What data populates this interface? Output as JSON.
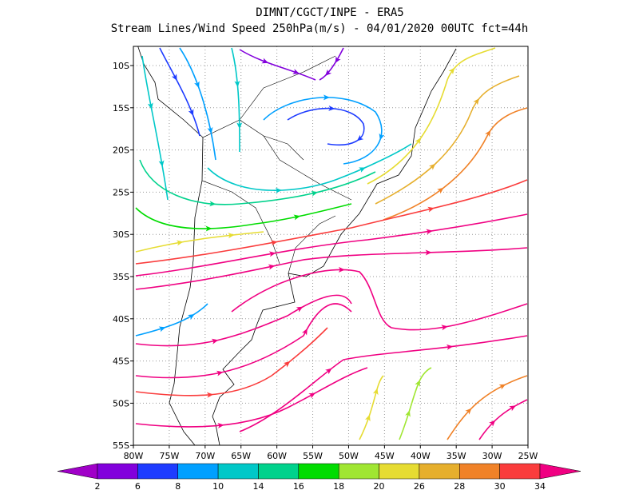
{
  "header": {
    "title": "DIMNT/CGCT/INPE  -  ERA5",
    "subtitle": "Stream Lines/Wind Speed 250hPa(m/s)  -  04/01/2020 00UTC fct=44h"
  },
  "axes": {
    "lat_labels": [
      "10S",
      "15S",
      "20S",
      "25S",
      "30S",
      "35S",
      "40S",
      "45S",
      "50S",
      "55S"
    ],
    "lon_labels": [
      "80W",
      "75W",
      "70W",
      "65W",
      "60W",
      "55W",
      "50W",
      "45W",
      "40W",
      "35W",
      "30W",
      "25W"
    ]
  },
  "colorbar": {
    "levels": [
      2,
      6,
      8,
      10,
      14,
      16,
      18,
      20,
      26,
      28,
      30,
      34
    ],
    "colors": [
      "#a000c8",
      "#8200dc",
      "#1e3cff",
      "#00a0ff",
      "#00c8c8",
      "#00d28c",
      "#00dc00",
      "#a0e632",
      "#e6dc32",
      "#e6af2d",
      "#f08228",
      "#fa3c3c",
      "#f00082"
    ]
  }
}
